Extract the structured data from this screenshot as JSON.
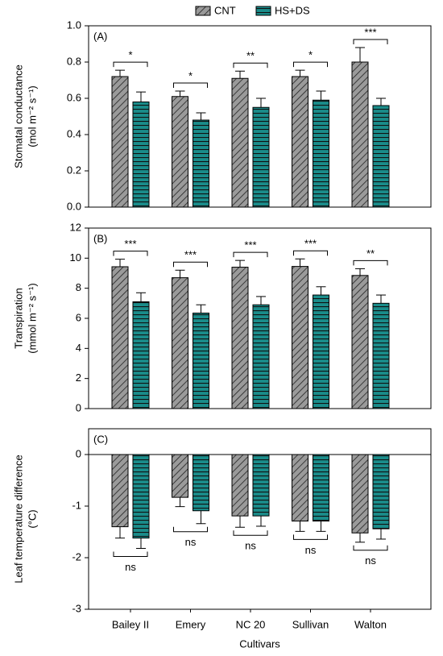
{
  "chart_data": [
    {
      "type": "bar",
      "panel_label": "(A)",
      "ylabel": [
        "Stomatal conductance",
        "(mol m⁻² s⁻¹)"
      ],
      "ylim": [
        0,
        1.0
      ],
      "yticks": [
        {
          "value": 0,
          "label": "0.0"
        },
        0.2,
        0.4,
        0.6,
        0.8,
        {
          "value": 1,
          "label": "1.0"
        }
      ],
      "series": [
        {
          "name": "CNT",
          "color": "#9a9a9a",
          "hatch": "diagonal",
          "values": [
            0.72,
            0.61,
            0.71,
            0.72,
            0.8
          ],
          "errors": [
            0.035,
            0.03,
            0.04,
            0.035,
            0.08
          ]
        },
        {
          "name": "HS+DS",
          "color": "#1a8c8a",
          "hatch": "horizontal",
          "values": [
            0.58,
            0.48,
            0.55,
            0.59,
            0.56
          ],
          "errors": [
            0.055,
            0.04,
            0.05,
            0.05,
            0.04
          ]
        }
      ],
      "annotations": [
        "*",
        "*",
        "**",
        "*",
        "***"
      ]
    },
    {
      "type": "bar",
      "panel_label": "(B)",
      "ylabel": [
        "Transpiration",
        "(mmol m⁻² s⁻¹)"
      ],
      "ylim": [
        0,
        12
      ],
      "yticks": [
        0,
        2,
        4,
        6,
        8,
        10,
        12
      ],
      "series": [
        {
          "color": "#9a9a9a",
          "hatch": "diagonal",
          "values": [
            9.43,
            8.7,
            9.4,
            9.45,
            8.85
          ],
          "errors": [
            0.5,
            0.5,
            0.45,
            0.5,
            0.45
          ]
        },
        {
          "color": "#1a8c8a",
          "hatch": "horizontal",
          "values": [
            7.1,
            6.35,
            6.9,
            7.55,
            7.0
          ],
          "errors": [
            0.6,
            0.55,
            0.55,
            0.55,
            0.55
          ]
        }
      ],
      "annotations": [
        "***",
        "***",
        "***",
        "***",
        "**"
      ]
    },
    {
      "type": "bar",
      "panel_label": "(C)",
      "ylabel": [
        "Leaf temperature difference",
        "(°C)"
      ],
      "ylim": [
        -3,
        0.5
      ],
      "yticks": [
        -3,
        -2,
        -1,
        0
      ],
      "categories": [
        "Bailey II",
        "Emery",
        "NC 20",
        "Sullivan",
        "Walton"
      ],
      "xlabel": "Cultivars",
      "series": [
        {
          "color": "#9a9a9a",
          "hatch": "diagonal",
          "values": [
            -1.4,
            -0.83,
            -1.19,
            -1.29,
            -1.52
          ],
          "errors": [
            0.22,
            0.18,
            0.22,
            0.2,
            0.18
          ]
        },
        {
          "color": "#1a8c8a",
          "hatch": "horizontal",
          "values": [
            -1.62,
            -1.09,
            -1.19,
            -1.29,
            -1.44
          ],
          "errors": [
            0.2,
            0.25,
            0.2,
            0.2,
            0.2
          ]
        }
      ],
      "annotations": [
        "ns",
        "ns",
        "ns",
        "ns",
        "ns"
      ]
    }
  ]
}
